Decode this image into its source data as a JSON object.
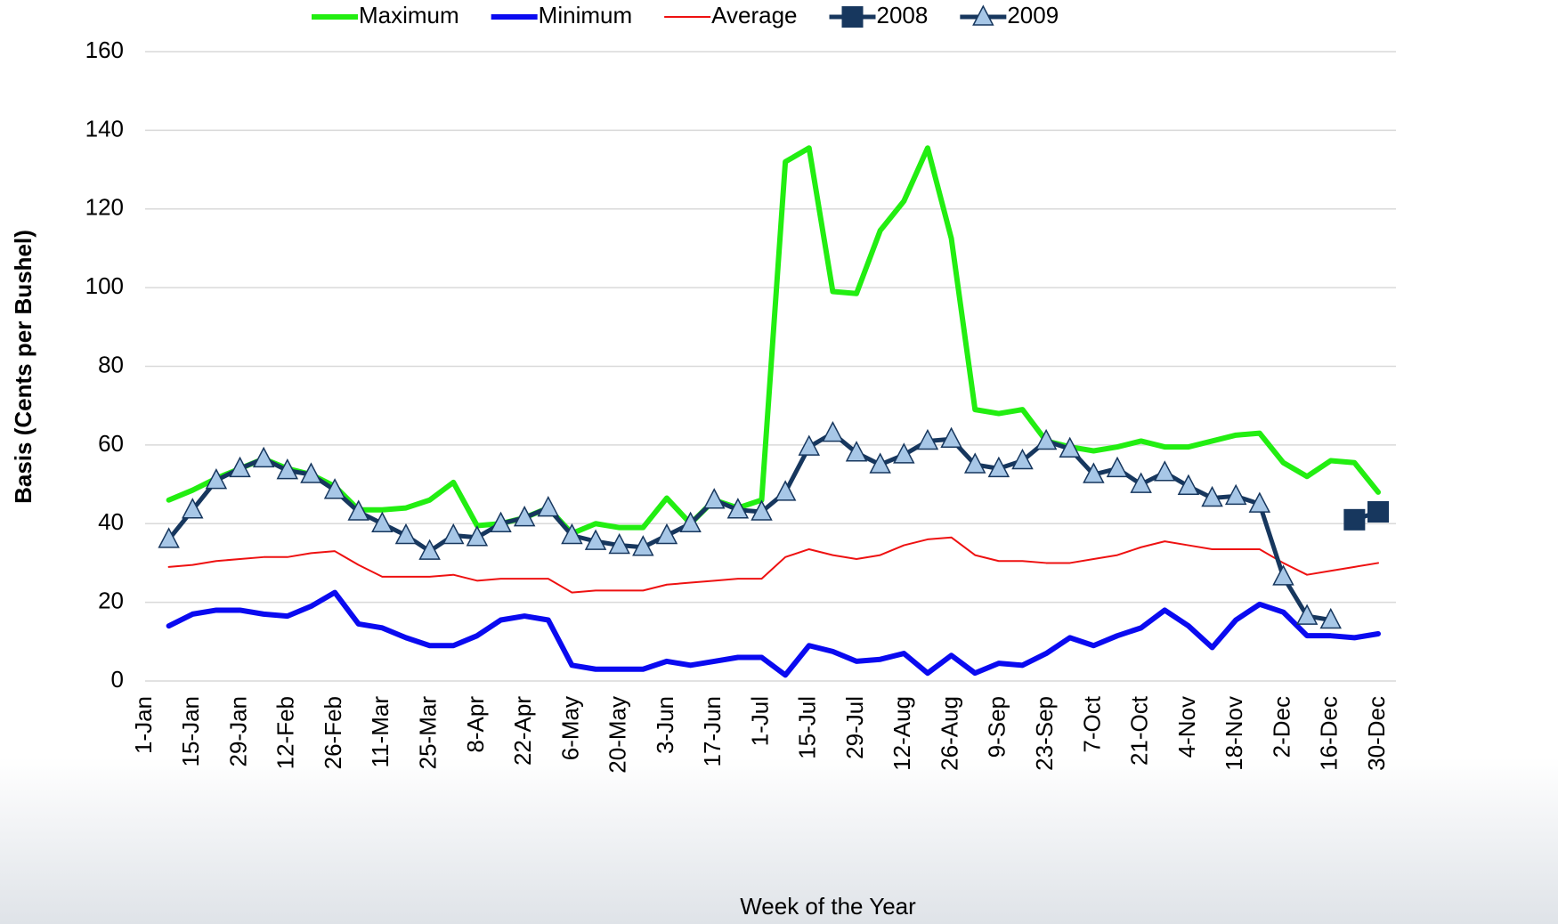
{
  "chart_data": {
    "type": "line",
    "x_label": "Week of the Year",
    "y_label": "Basis (Cents per Bushel)",
    "categories": [
      "1-Jan",
      null,
      "15-Jan",
      null,
      "29-Jan",
      null,
      "12-Feb",
      null,
      "26-Feb",
      null,
      "11-Mar",
      null,
      "25-Mar",
      null,
      "8-Apr",
      null,
      "22-Apr",
      null,
      "6-May",
      null,
      "20-May",
      null,
      "3-Jun",
      null,
      "17-Jun",
      null,
      "1-Jul",
      null,
      "15-Jul",
      null,
      "29-Jul",
      null,
      "12-Aug",
      null,
      "26-Aug",
      null,
      "9-Sep",
      null,
      "23-Sep",
      null,
      "7-Oct",
      null,
      "21-Oct",
      null,
      "4-Nov",
      null,
      "18-Nov",
      null,
      "2-Dec",
      null,
      "16-Dec",
      null,
      "30-Dec"
    ],
    "ylim": [
      0,
      160
    ],
    "yticks": [
      0,
      20,
      40,
      60,
      80,
      100,
      120,
      140,
      160
    ],
    "grid": true,
    "legend": "top",
    "series": [
      {
        "name": "Maximum",
        "color": "#22ee11",
        "width": 6,
        "marker": "none",
        "values": [
          null,
          46,
          48.5,
          51.5,
          54,
          56.5,
          54,
          52.5,
          49.5,
          43.5,
          43.5,
          44,
          46,
          50.5,
          39.5,
          40,
          41.5,
          44,
          37.5,
          40,
          39,
          39,
          46.5,
          40,
          46,
          44,
          46,
          132,
          135.5,
          99,
          98.5,
          114.5,
          122,
          135.5,
          112.5,
          69,
          68,
          69,
          61,
          59.5,
          58.5,
          59.5,
          61,
          59.5,
          59.5,
          61,
          62.5,
          63,
          55.5,
          52,
          56,
          55.5,
          48
        ]
      },
      {
        "name": "Minimum",
        "color": "#0a0af0",
        "width": 6,
        "marker": "none",
        "values": [
          null,
          14,
          17,
          18,
          18,
          17,
          16.5,
          19,
          22.5,
          14.5,
          13.5,
          11,
          9,
          9,
          11.5,
          15.5,
          16.5,
          15.5,
          4,
          3,
          3,
          3,
          5,
          4,
          5,
          6,
          6,
          1.5,
          9,
          7.5,
          5,
          5.5,
          7,
          2,
          6.5,
          2,
          4.5,
          4,
          7,
          11,
          9,
          11.5,
          13.5,
          18,
          14,
          8.5,
          15.5,
          19.5,
          17.5,
          11.5,
          11.5,
          11,
          12
        ]
      },
      {
        "name": "Average",
        "color": "#ee1111",
        "width": 2,
        "marker": "none",
        "values": [
          null,
          29,
          29.5,
          30.5,
          31,
          31.5,
          31.5,
          32.5,
          33,
          29.5,
          26.5,
          26.5,
          26.5,
          27,
          25.5,
          26,
          26,
          26,
          22.5,
          23,
          23,
          23,
          24.5,
          25,
          25.5,
          26,
          26,
          31.5,
          33.5,
          32,
          31,
          32,
          34.5,
          36,
          36.5,
          32,
          30.5,
          30.5,
          30,
          30,
          31,
          32,
          34,
          35.5,
          34.5,
          33.5,
          33.5,
          33.5,
          30,
          27,
          28,
          29,
          30
        ]
      },
      {
        "name": "2008",
        "color": "#17375e",
        "width": 5,
        "marker": "square",
        "marker_fill": "#17375e",
        "values": [
          null,
          null,
          null,
          null,
          null,
          null,
          null,
          null,
          null,
          null,
          null,
          null,
          null,
          null,
          null,
          null,
          null,
          null,
          null,
          null,
          null,
          null,
          null,
          null,
          null,
          null,
          null,
          null,
          null,
          null,
          null,
          null,
          null,
          null,
          null,
          null,
          null,
          null,
          null,
          null,
          null,
          null,
          null,
          null,
          null,
          null,
          null,
          null,
          null,
          null,
          null,
          41,
          43
        ]
      },
      {
        "name": "2009",
        "color": "#17375e",
        "width": 5,
        "marker": "triangle",
        "marker_fill": "#a7c7e7",
        "values": [
          null,
          36,
          43.5,
          51,
          54,
          56.5,
          53.5,
          52.5,
          48.5,
          43,
          40,
          37,
          33,
          37,
          36.5,
          40,
          41.5,
          44,
          37,
          35.5,
          34.5,
          34,
          37,
          40,
          46,
          43.5,
          43,
          48,
          59.5,
          63,
          58,
          55,
          57.5,
          61,
          61.5,
          55,
          54,
          56,
          61,
          59,
          52.5,
          54,
          50,
          53,
          49.5,
          46.5,
          47,
          45,
          26.5,
          16.5,
          15.5,
          null,
          null
        ]
      }
    ]
  }
}
